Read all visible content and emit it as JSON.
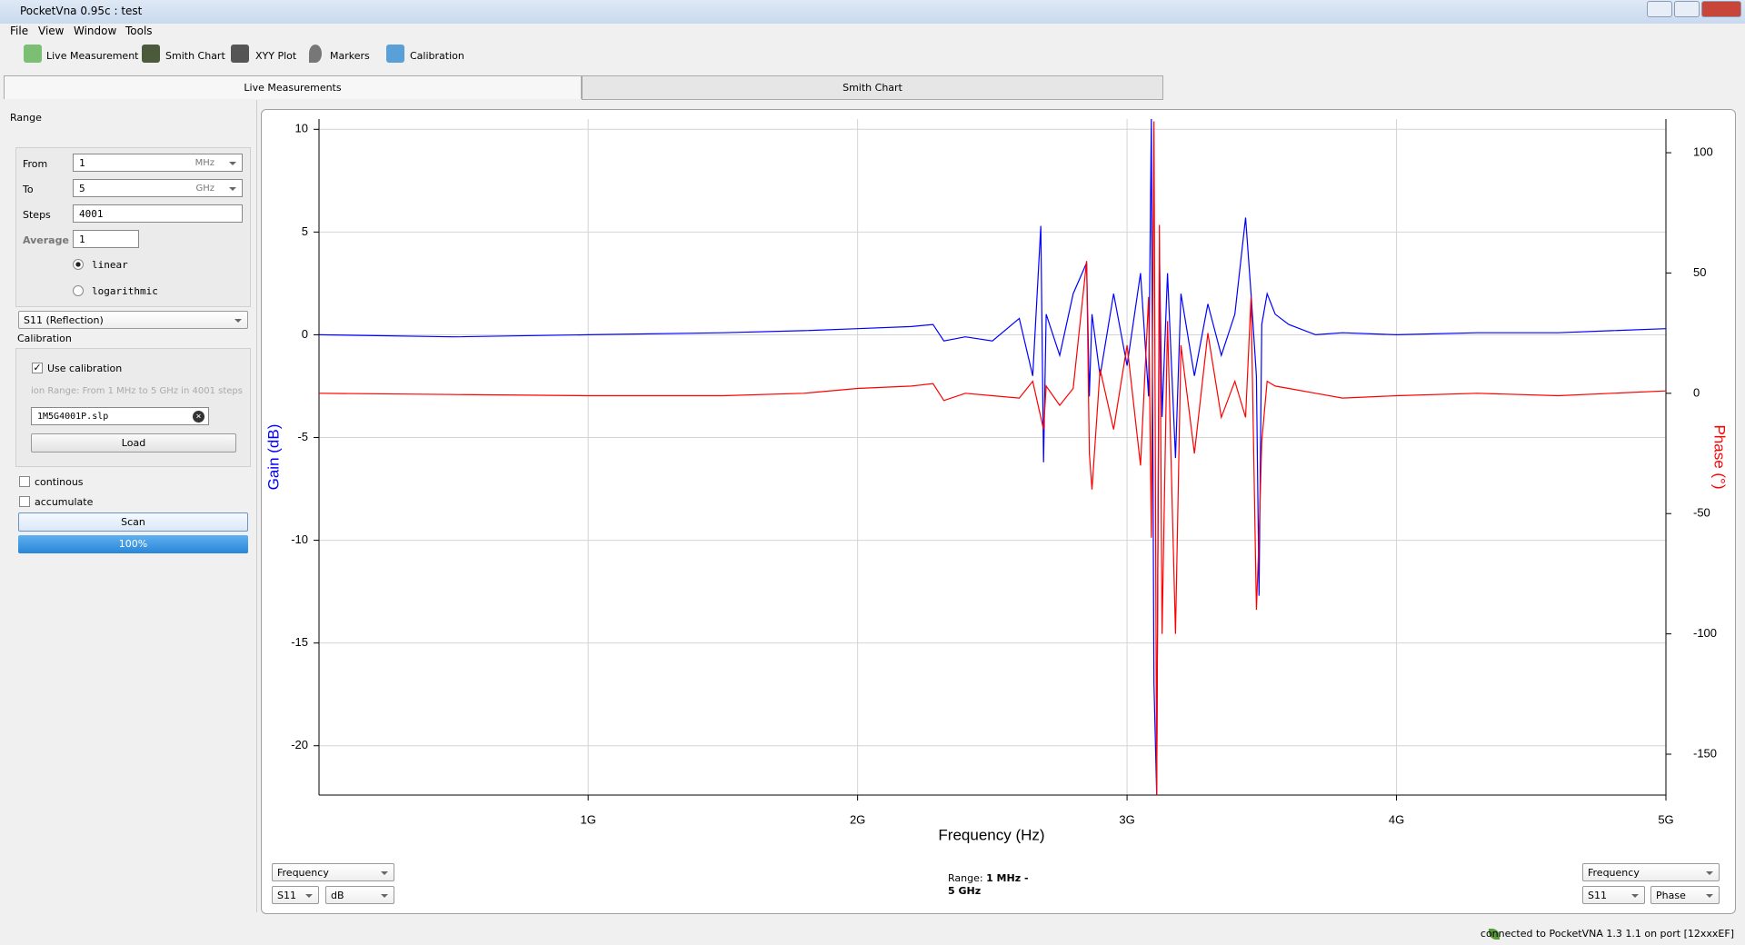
{
  "window": {
    "title": "PocketVna 0.95c : test"
  },
  "menu": [
    "File",
    "View",
    "Window",
    "Tools"
  ],
  "toolbar": [
    "Live Measurement",
    "Smith Chart",
    "XYY Plot",
    "Markers",
    "Calibration"
  ],
  "tabs": [
    "Live Measurements",
    "Smith Chart"
  ],
  "sidebar": {
    "range_label": "Range",
    "from_label": "From",
    "from_value": "1",
    "from_unit": "MHz",
    "to_label": "To",
    "to_value": "5",
    "to_unit": "GHz",
    "steps_label": "Steps",
    "steps_value": "4001",
    "average_label": "Average",
    "average_value": "1",
    "linear": "linear",
    "logarithmic": "logarithmic",
    "parameter": "S11 (Reflection)",
    "calibration_label": "Calibration",
    "use_calibration": "Use calibration",
    "cal_range": "ion Range: From 1 MHz to 5 GHz in 4001 steps",
    "cal_file": "1M5G4001P.slp",
    "load": "Load",
    "continous": "continous",
    "accumulate": "accumulate",
    "scan": "Scan",
    "progress": "100%"
  },
  "bottom": {
    "left_x": "Frequency",
    "left_param": "S11",
    "left_unit": "dB",
    "range_label": "Range:",
    "range_value": "1 MHz - 5 GHz",
    "right_x": "Frequency",
    "right_param": "S11",
    "right_unit": "Phase"
  },
  "status": "connected to PocketVNA 1.3 1.1 on port [12xxxEF]",
  "chart_data": {
    "type": "line",
    "xlabel": "Frequency (Hz)",
    "ylabel": "Gain (dB)",
    "y2label": "Phase (°)",
    "xlim": [
      1000000.0,
      5000000000.0
    ],
    "ylim": [
      -22.4,
      10.5
    ],
    "y2lim": [
      -167,
      114
    ],
    "grid": true,
    "xticks": [
      {
        "value": 1000000000.0,
        "label": "1G"
      },
      {
        "value": 2000000000.0,
        "label": "2G"
      },
      {
        "value": 3000000000.0,
        "label": "3G"
      },
      {
        "value": 4000000000.0,
        "label": "4G"
      },
      {
        "value": 5000000000.0,
        "label": "5G"
      }
    ],
    "yticks": [
      10,
      5,
      0,
      -5,
      -10,
      -15,
      -20
    ],
    "y2ticks": [
      100,
      50,
      0,
      -50,
      -100,
      -150
    ],
    "x": [
      1000000.0,
      500000000.0,
      1000000000.0,
      1500000000.0,
      1800000000.0,
      2000000000.0,
      2200000000.0,
      2280000000.0,
      2320000000.0,
      2400000000.0,
      2500000000.0,
      2600000000.0,
      2650000000.0,
      2680000000.0,
      2690000000.0,
      2700000000.0,
      2750000000.0,
      2800000000.0,
      2850000000.0,
      2860000000.0,
      2870000000.0,
      2900000000.0,
      2950000000.0,
      3000000000.0,
      3050000000.0,
      3080000000.0,
      3090000000.0,
      3100000000.0,
      3110000000.0,
      3120000000.0,
      3130000000.0,
      3150000000.0,
      3180000000.0,
      3200000000.0,
      3250000000.0,
      3300000000.0,
      3350000000.0,
      3400000000.0,
      3440000000.0,
      3460000000.0,
      3480000000.0,
      3490000000.0,
      3500000000.0,
      3520000000.0,
      3550000000.0,
      3600000000.0,
      3700000000.0,
      3800000000.0,
      4000000000.0,
      4300000000.0,
      4600000000.0,
      4800000000.0,
      5000000000.0
    ],
    "series": [
      {
        "name": "Gain",
        "color": "#0000ff",
        "axis": "y",
        "values": [
          0,
          -0.1,
          0,
          0.1,
          0.2,
          0.3,
          0.4,
          0.5,
          -0.3,
          -0.1,
          -0.3,
          0.8,
          -2,
          5.3,
          -6.2,
          1,
          -1,
          2,
          3.5,
          -3,
          1,
          -2,
          2,
          -1.5,
          3,
          -3,
          10.5,
          -17,
          -22.4,
          4,
          -4,
          3,
          -6,
          2,
          -2,
          1.5,
          -1,
          1,
          5.7,
          2,
          -2,
          -12.7,
          0.5,
          2,
          1,
          0.5,
          0,
          0.1,
          0,
          0.1,
          0.1,
          0.2,
          0.3
        ]
      },
      {
        "name": "Phase",
        "color": "#ff0000",
        "axis": "y2",
        "values": [
          0,
          -0.5,
          -1,
          -1,
          0,
          2,
          3,
          4,
          -3,
          0,
          -1,
          -2,
          5,
          -10,
          -15,
          3,
          -5,
          2,
          55,
          -25,
          -40,
          10,
          -15,
          20,
          -30,
          40,
          -60,
          113,
          -167,
          70,
          -100,
          30,
          -100,
          20,
          -25,
          25,
          -10,
          5,
          -10,
          40,
          -90,
          -60,
          -20,
          5,
          3,
          2,
          0,
          -2,
          -1,
          0,
          -1,
          0,
          1
        ]
      }
    ]
  }
}
